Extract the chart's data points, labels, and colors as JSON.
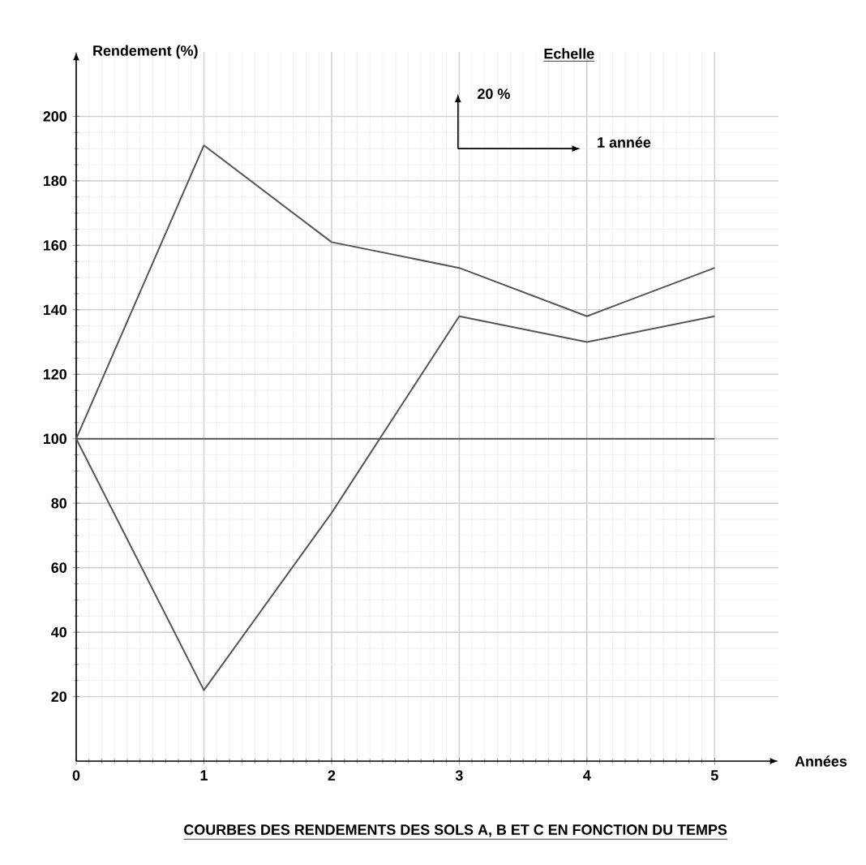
{
  "chart_data": {
    "type": "line",
    "title": "COURBES DES RENDEMENTS DES SOLS A, B ET C EN FONCTION DU TEMPS",
    "xlabel": "Années",
    "ylabel": "Rendement (%)",
    "annotations": [
      "Echelle",
      "20 %",
      "1 année"
    ],
    "x": [
      0,
      1,
      2,
      3,
      4,
      5
    ],
    "series": [
      {
        "color": "#555555",
        "values": [
          100,
          191,
          161,
          153,
          138,
          153
        ]
      },
      {
        "color": "#555555",
        "values": [
          100,
          22,
          77,
          138,
          130,
          138
        ]
      },
      {
        "color": "#555555",
        "values": [
          100,
          100,
          100,
          100,
          100,
          100
        ]
      }
    ],
    "xlim": [
      0,
      5.5
    ],
    "ylim": [
      0,
      220
    ],
    "xticks": [
      0,
      1,
      2,
      3,
      4,
      5
    ],
    "yticks": [
      20,
      40,
      60,
      80,
      100,
      120,
      140,
      160,
      180,
      200
    ],
    "grid": true
  }
}
